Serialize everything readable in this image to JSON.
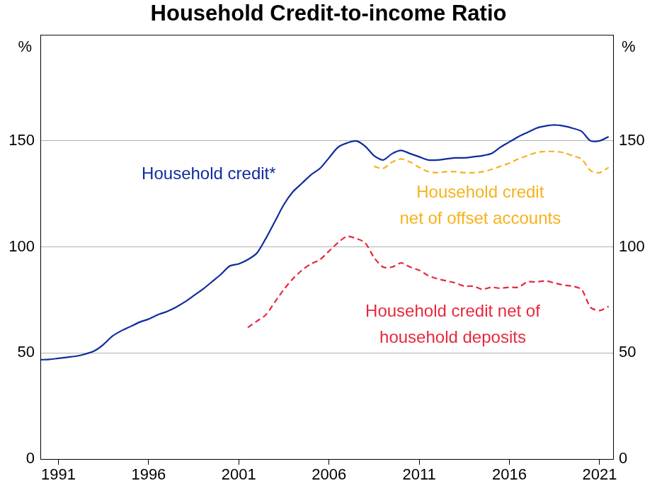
{
  "chart_data": {
    "type": "line",
    "title": "Household Credit-to-income Ratio",
    "ylabel": "%",
    "x": [
      1990,
      1990.5,
      1991,
      1991.5,
      1992,
      1992.5,
      1993,
      1993.5,
      1994,
      1994.5,
      1995,
      1995.5,
      1996,
      1996.5,
      1997,
      1997.5,
      1998,
      1998.5,
      1999,
      1999.5,
      2000,
      2000.5,
      2001,
      2001.5,
      2002,
      2002.5,
      2003,
      2003.5,
      2004,
      2004.5,
      2005,
      2005.5,
      2006,
      2006.5,
      2007,
      2007.5,
      2008,
      2008.5,
      2009,
      2009.5,
      2010,
      2010.5,
      2011,
      2011.5,
      2012,
      2012.5,
      2013,
      2013.5,
      2014,
      2014.5,
      2015,
      2015.5,
      2016,
      2016.5,
      2017,
      2017.5,
      2018,
      2018.5,
      2019,
      2019.5,
      2020,
      2020.5,
      2021,
      2021.5
    ],
    "series": [
      {
        "name": "Household credit*",
        "color": "#0f2c9e",
        "line_style": "solid",
        "values": [
          46.8,
          47,
          47.5,
          48,
          48.5,
          49.5,
          51,
          54,
          58,
          60.5,
          62.5,
          64.5,
          66,
          68,
          69.5,
          71.5,
          74,
          77,
          80,
          83.5,
          87,
          91,
          92,
          94,
          97,
          104,
          112,
          120,
          126,
          130,
          134,
          137,
          142,
          147,
          149,
          150,
          147.5,
          143,
          141,
          144,
          145.5,
          144,
          142.5,
          141,
          141,
          141.5,
          142,
          142,
          142.5,
          143,
          144,
          147,
          149.5,
          152,
          154,
          156,
          157,
          157.5,
          157,
          156,
          154.5,
          150,
          150,
          152
        ]
      },
      {
        "name": "Household credit\nnet of offset accounts",
        "color": "#f7b21b",
        "line_style": "dashed",
        "values": [
          null,
          null,
          null,
          null,
          null,
          null,
          null,
          null,
          null,
          null,
          null,
          null,
          null,
          null,
          null,
          null,
          null,
          null,
          null,
          null,
          null,
          null,
          null,
          null,
          null,
          null,
          null,
          null,
          null,
          null,
          null,
          null,
          null,
          null,
          null,
          null,
          null,
          138,
          137,
          140,
          141.5,
          140,
          137.5,
          135.5,
          135,
          135.5,
          135.5,
          135,
          135,
          135.5,
          136.5,
          138,
          139.5,
          141.5,
          143,
          144.5,
          145,
          145,
          144.5,
          143,
          141.5,
          136,
          135,
          137.5
        ]
      },
      {
        "name": "Household credit net of\nhousehold deposits",
        "color": "#e8283c",
        "line_style": "dashed",
        "values": [
          null,
          null,
          null,
          null,
          null,
          null,
          null,
          null,
          null,
          null,
          null,
          null,
          null,
          null,
          null,
          null,
          null,
          null,
          null,
          null,
          null,
          null,
          null,
          62,
          65,
          68,
          74,
          80,
          85,
          89,
          92,
          94,
          98,
          102,
          105,
          104,
          102,
          95,
          90.5,
          90.5,
          92.5,
          90.5,
          89,
          86.5,
          85,
          84,
          83,
          81.5,
          81.5,
          80,
          81,
          80.5,
          81,
          81,
          83.5,
          83.5,
          84,
          83,
          82,
          81.5,
          80,
          71.5,
          70,
          72
        ]
      }
    ],
    "xlim": [
      1990,
      2021.75
    ],
    "xticks": [
      1991,
      1996,
      2001,
      2006,
      2011,
      2016,
      2021
    ],
    "ylim": [
      0,
      200
    ],
    "yticks": [
      0,
      50,
      100,
      150
    ],
    "grid": true
  }
}
